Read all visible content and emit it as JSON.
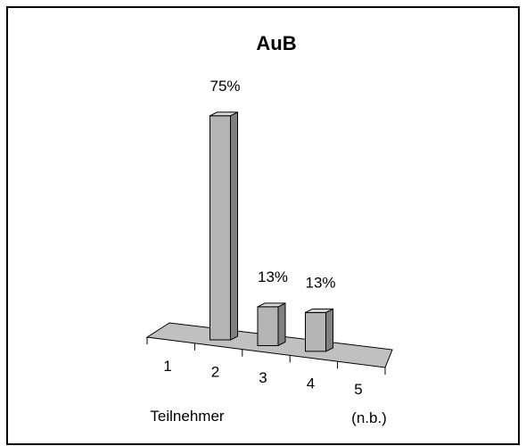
{
  "chart_data": {
    "type": "bar3d",
    "title": "AuB",
    "categories": [
      "1",
      "2",
      "3",
      "4",
      "5"
    ],
    "category_note": "(n.b.)",
    "values": [
      null,
      75,
      13,
      13,
      null
    ],
    "value_labels": [
      null,
      "75%",
      "13%",
      "13%",
      null
    ],
    "x_label": "Teilnehmer",
    "color": "#b4b4b4"
  }
}
